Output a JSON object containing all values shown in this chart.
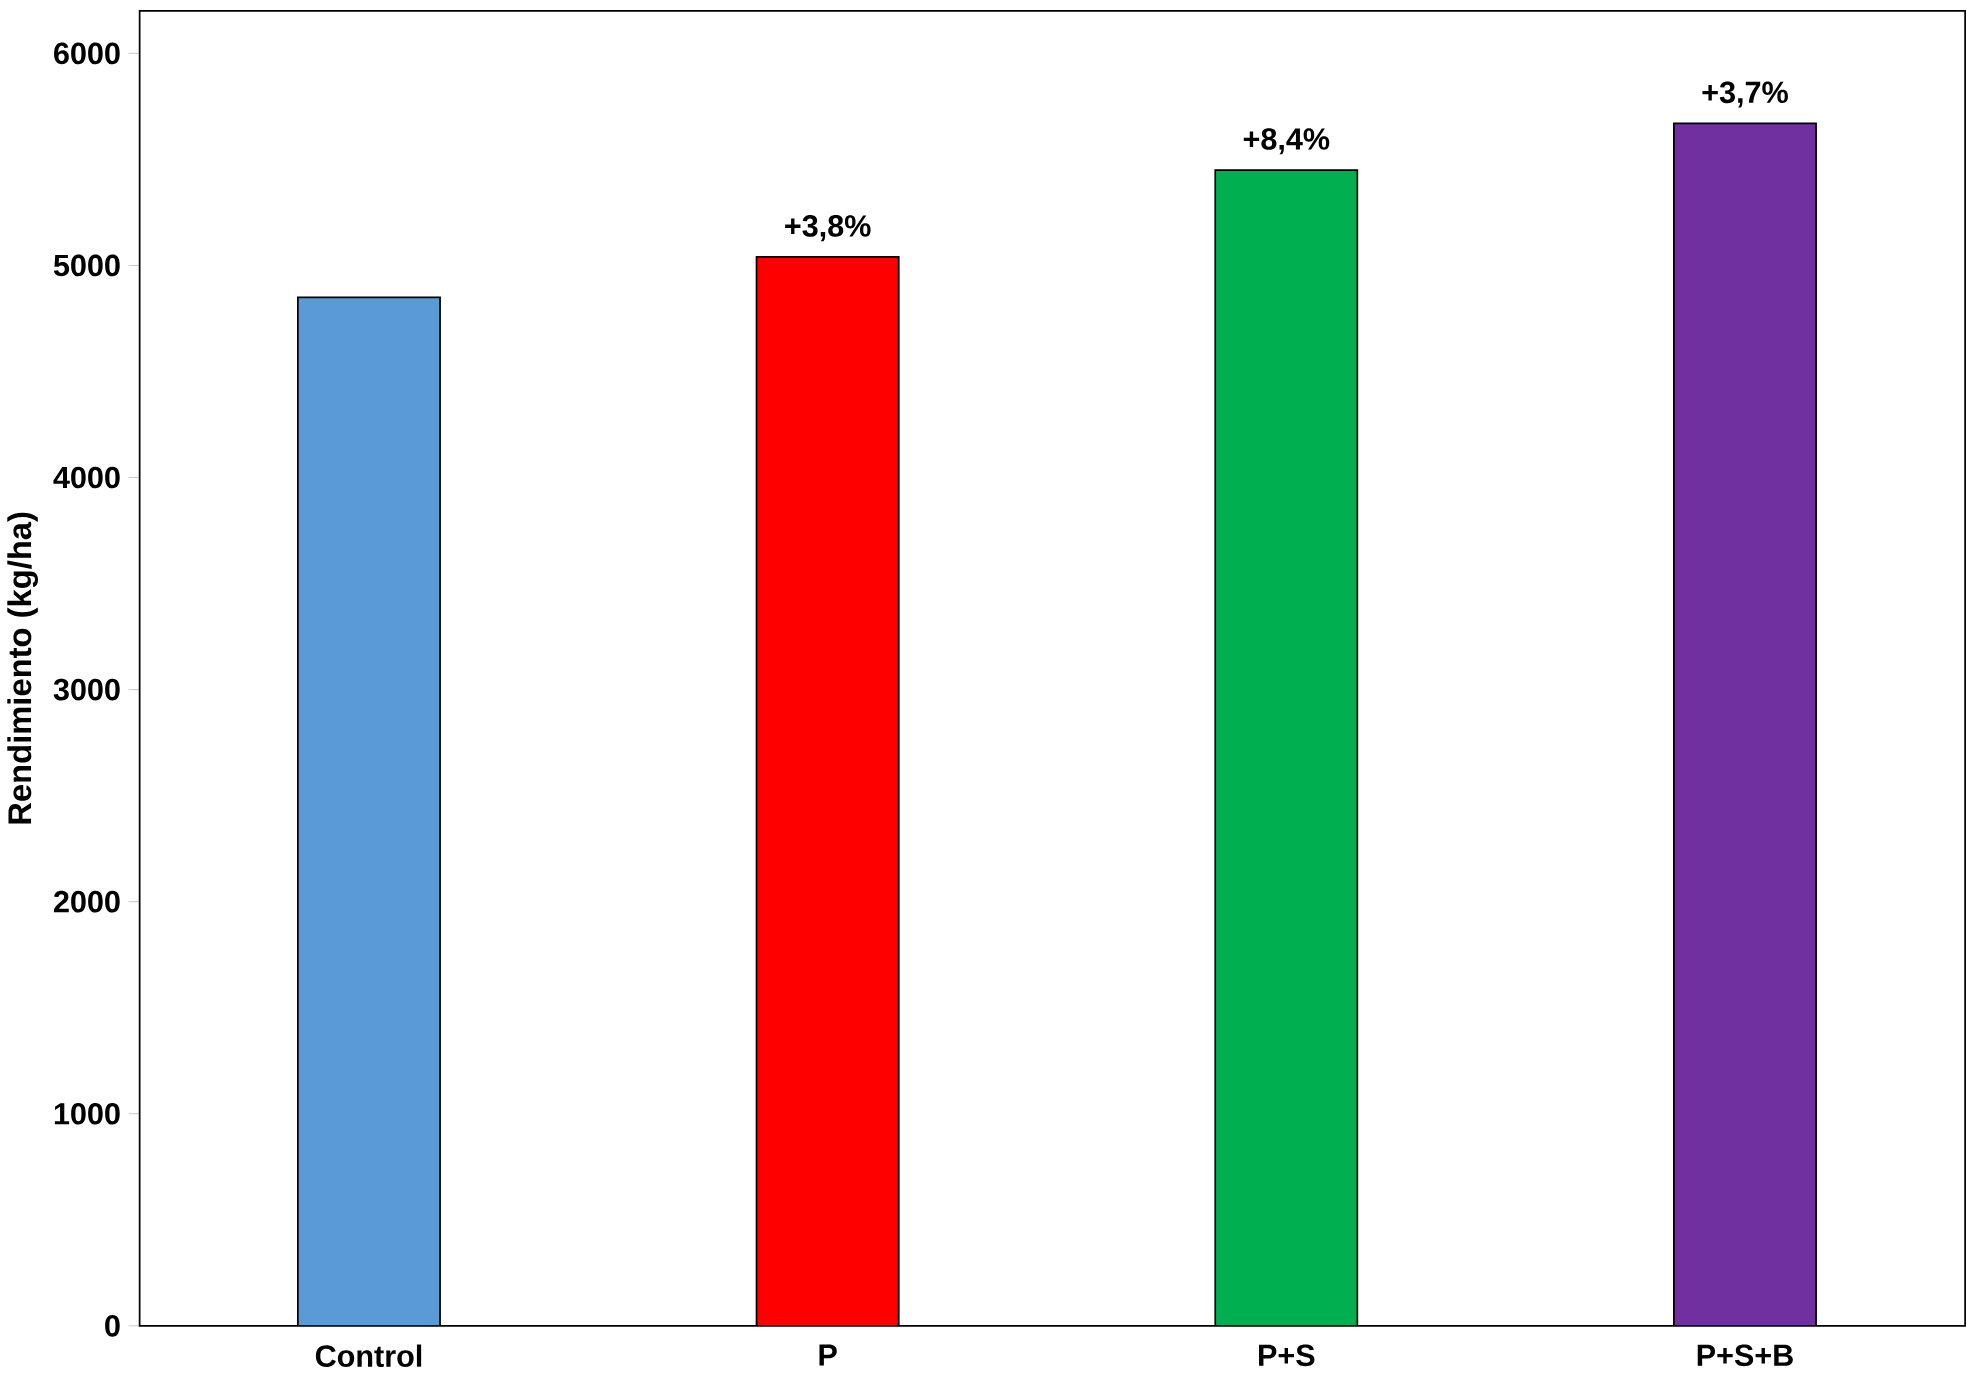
{
  "chart_data": {
    "type": "bar",
    "ylabel": "Rendimiento (kg/ha)",
    "categories": [
      "Control",
      "P",
      "P+S",
      "P+S+B"
    ],
    "values": [
      4850,
      5040,
      5450,
      5670
    ],
    "colors": [
      "#5b9bd5",
      "#ff0000",
      "#00b050",
      "#7030a0"
    ],
    "ylim": [
      0,
      6200
    ],
    "yticks": [
      0,
      1000,
      2000,
      3000,
      4000,
      5000,
      6000
    ],
    "grid": false,
    "annotations": [
      {
        "text": "+3,8%",
        "x": "P",
        "y": 5040
      },
      {
        "text": "+8,4%",
        "x": "P+S",
        "y": 5450
      },
      {
        "text": "+3,7%",
        "x": "P+S+B",
        "y": 5670
      }
    ]
  }
}
